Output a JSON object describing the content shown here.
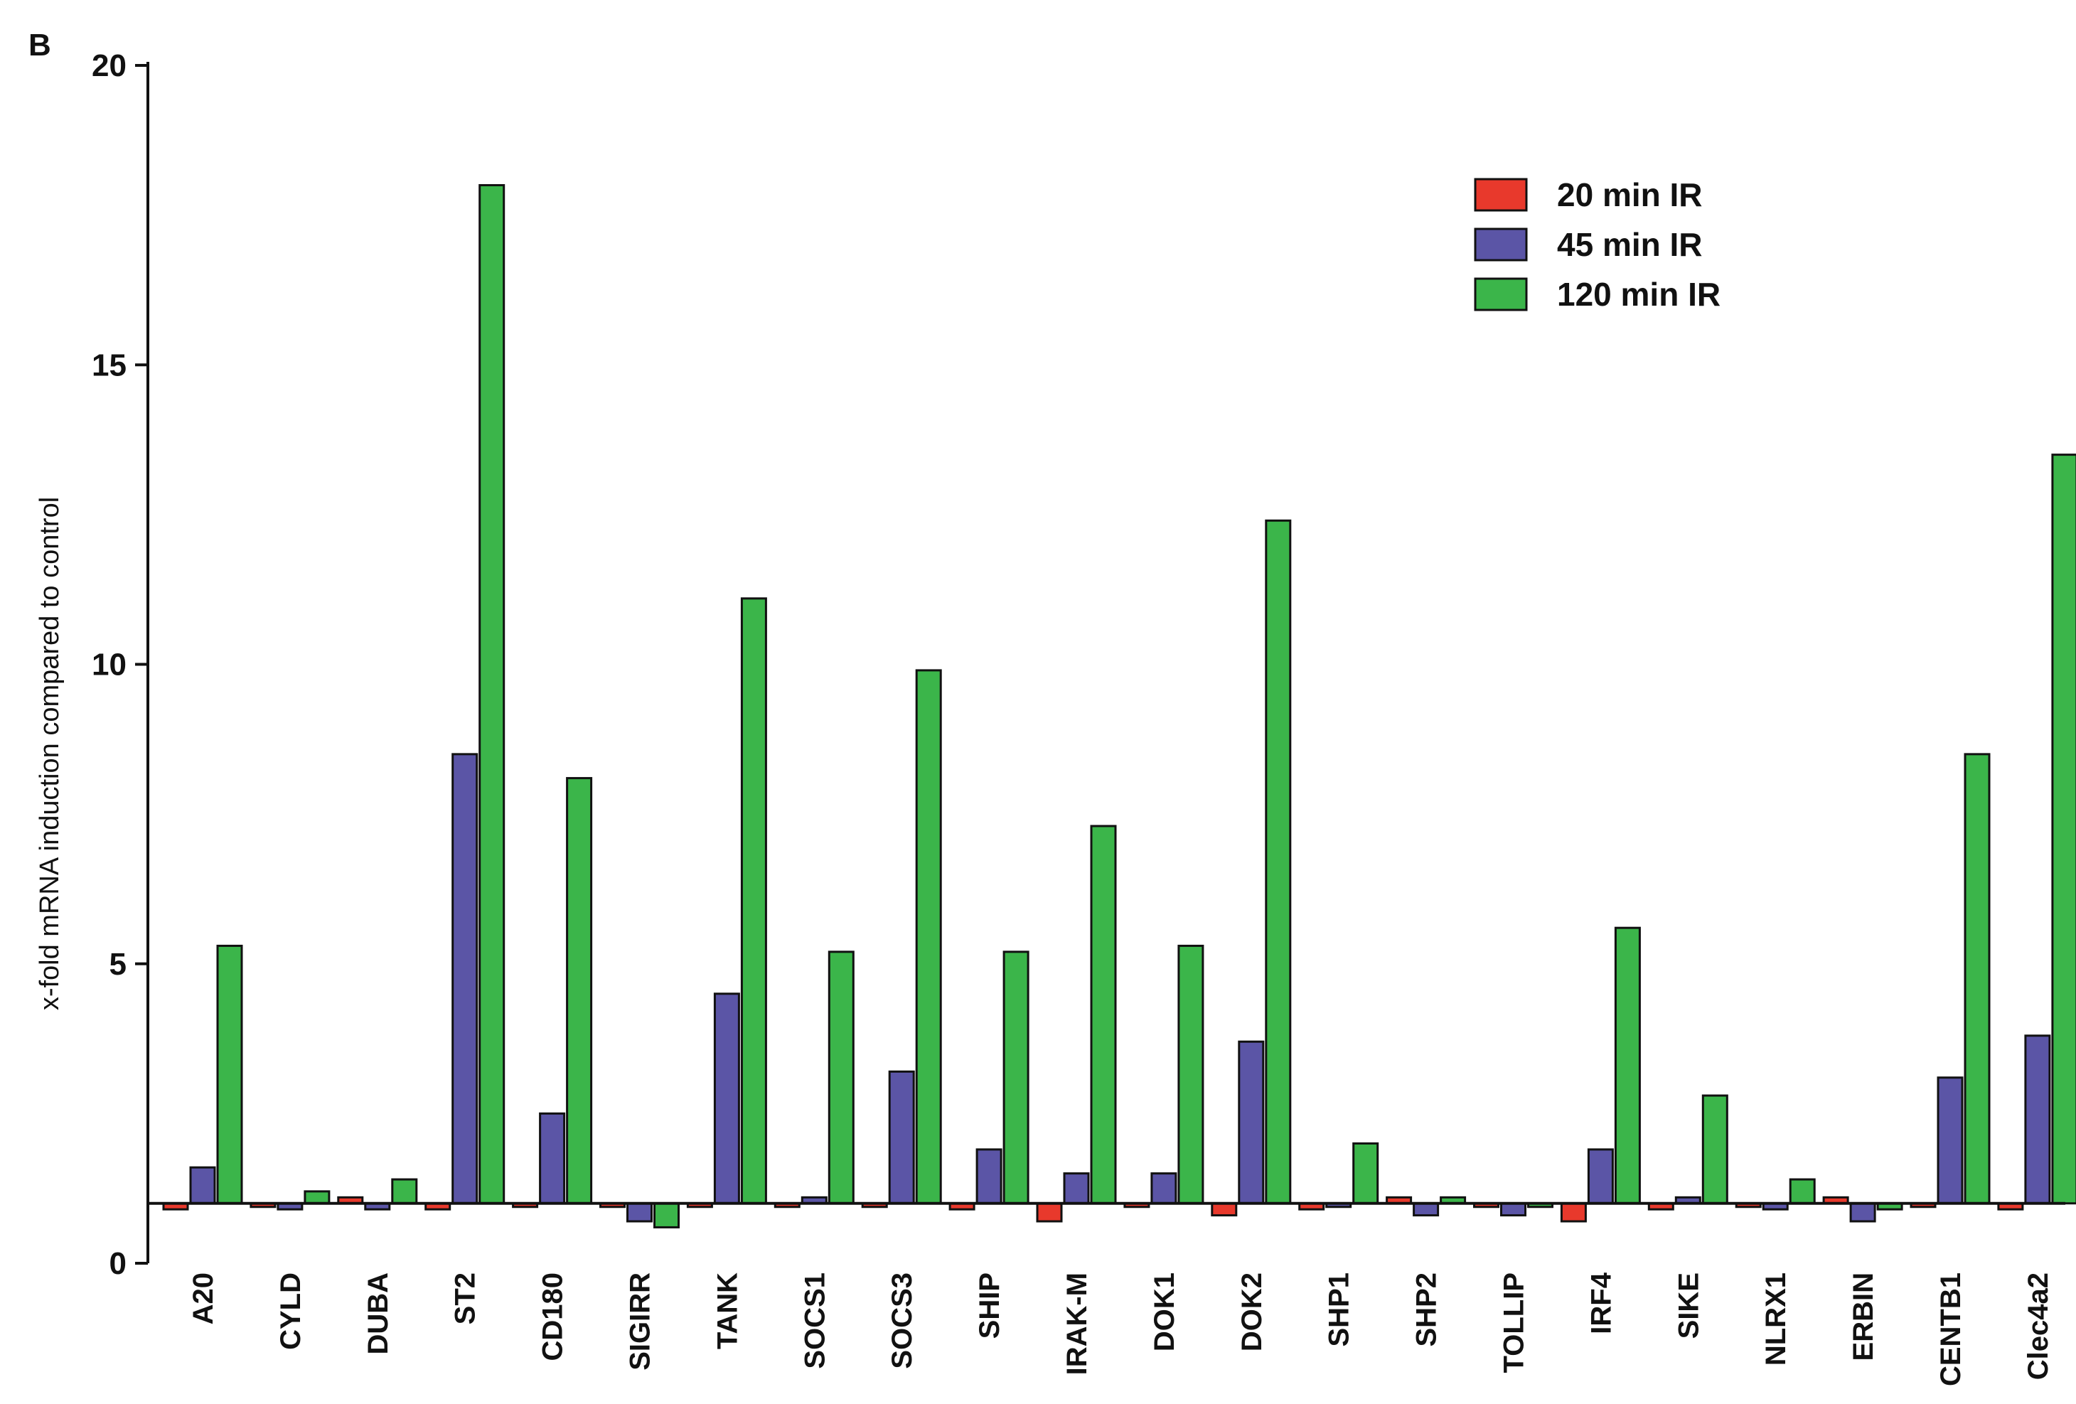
{
  "panel_label": "B",
  "chart_data": {
    "type": "bar",
    "title": "",
    "xlabel": "",
    "ylabel": "x-fold mRNA induction compared to control",
    "ylim": [
      0,
      20
    ],
    "yticks": [
      0,
      5,
      10,
      15,
      20
    ],
    "baseline": 1,
    "grid": false,
    "legend_position": "top-right",
    "categories": [
      "A20",
      "CYLD",
      "DUBA",
      "ST2",
      "CD180",
      "SIGIRR",
      "TANK",
      "SOCS1",
      "SOCS3",
      "SHIP",
      "IRAK-M",
      "DOK1",
      "DOK2",
      "SHP1",
      "SHP2",
      "TOLLIP",
      "IRF4",
      "SIKE",
      "NLRX1",
      "ERBIN",
      "CENTB1",
      "Clec4a2"
    ],
    "series": [
      {
        "name": "20 min IR",
        "color": "#e8392c",
        "values": [
          0.9,
          1.0,
          1.1,
          0.9,
          1.0,
          1.0,
          1.0,
          1.0,
          1.0,
          0.9,
          0.7,
          1.0,
          0.8,
          0.9,
          1.1,
          1.0,
          0.7,
          0.9,
          1.0,
          1.1,
          1.0,
          0.9
        ]
      },
      {
        "name": "45 min IR",
        "color": "#5b55a6",
        "values": [
          1.6,
          0.9,
          0.9,
          8.5,
          2.5,
          0.7,
          4.5,
          1.1,
          3.2,
          1.9,
          1.5,
          1.5,
          3.7,
          1.0,
          0.8,
          0.8,
          1.9,
          1.1,
          0.9,
          0.7,
          3.1,
          3.8
        ]
      },
      {
        "name": "120 min IR",
        "color": "#3bb54a",
        "values": [
          5.3,
          1.2,
          1.4,
          18.0,
          8.1,
          0.6,
          11.1,
          5.2,
          9.9,
          5.2,
          7.3,
          5.3,
          12.4,
          2.0,
          1.1,
          1.0,
          5.6,
          2.8,
          1.4,
          0.9,
          8.5,
          13.5
        ]
      }
    ]
  }
}
